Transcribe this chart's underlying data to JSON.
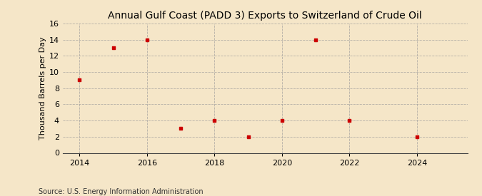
{
  "title": "Annual Gulf Coast (PADD 3) Exports to Switzerland of Crude Oil",
  "ylabel": "Thousand Barrels per Day",
  "source": "Source: U.S. Energy Information Administration",
  "background_color": "#f5e6c8",
  "plot_bg_color": "#f5e6c8",
  "marker_color": "#cc0000",
  "grid_color": "#999999",
  "years": [
    2014,
    2015,
    2016,
    2017,
    2018,
    2019,
    2020,
    2021,
    2022,
    2024
  ],
  "values": [
    9,
    13,
    14,
    3,
    4,
    2,
    4,
    14,
    4,
    2
  ],
  "xlim": [
    2013.5,
    2025.5
  ],
  "ylim": [
    0,
    16
  ],
  "yticks": [
    0,
    2,
    4,
    6,
    8,
    10,
    12,
    14,
    16
  ],
  "xticks": [
    2014,
    2016,
    2018,
    2020,
    2022,
    2024
  ],
  "title_fontsize": 10,
  "label_fontsize": 8,
  "tick_fontsize": 8,
  "source_fontsize": 7
}
